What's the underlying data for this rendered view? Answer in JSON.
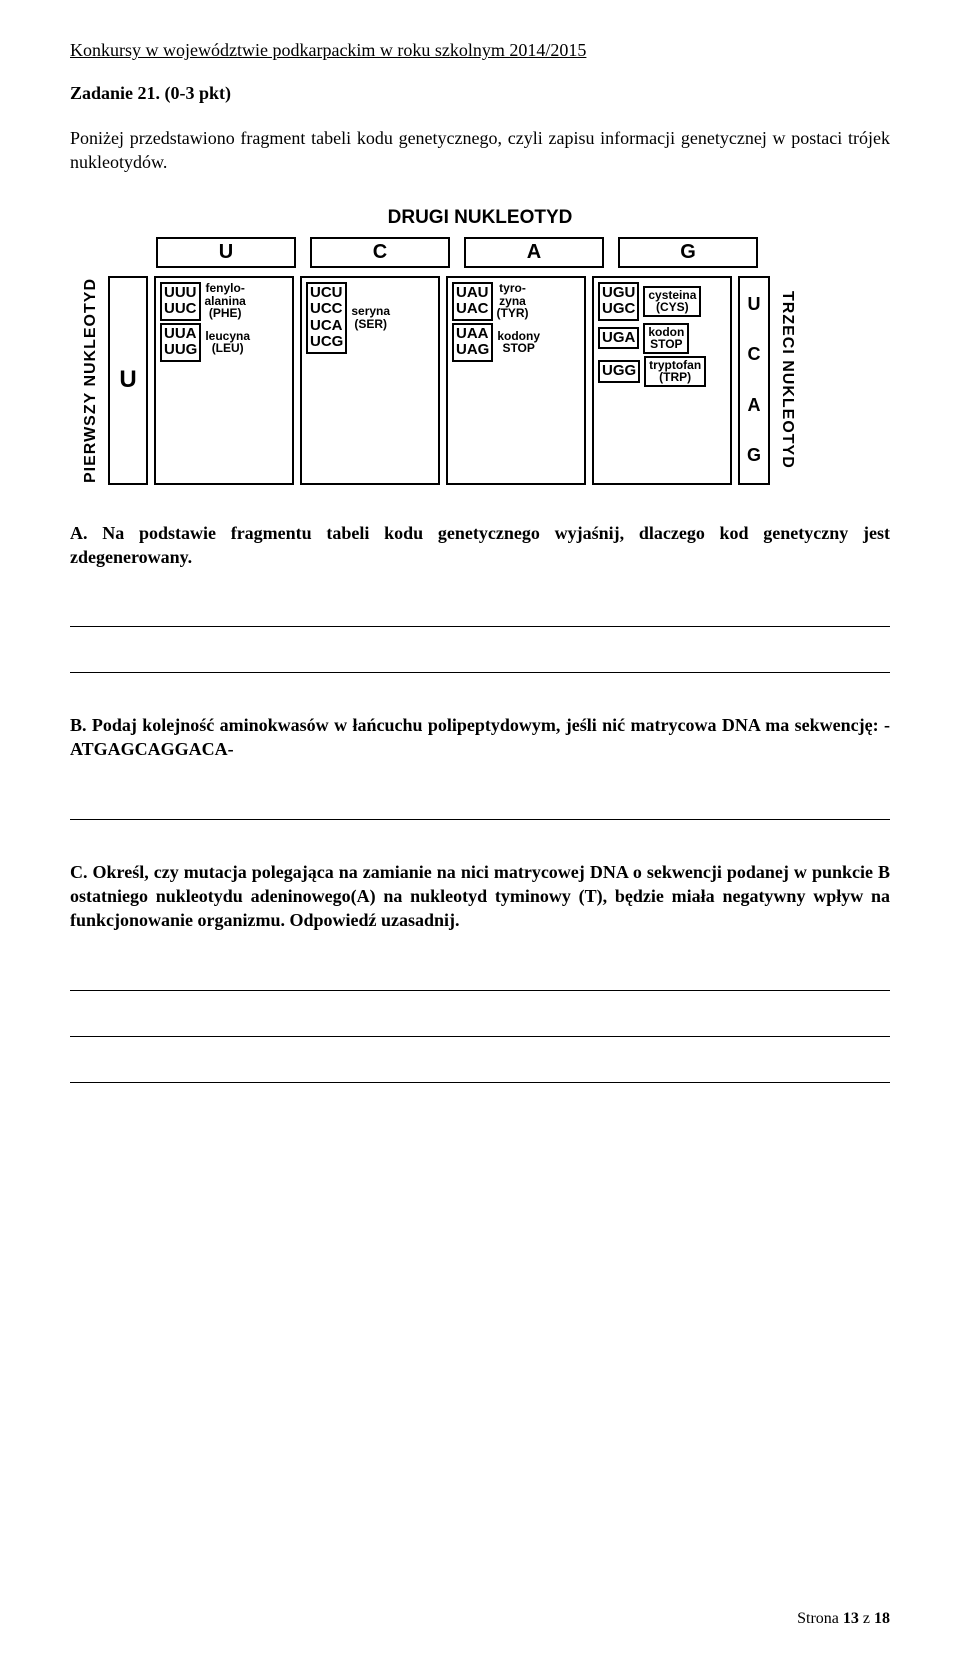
{
  "header": "Konkursy w województwie podkarpackim w roku szkolnym 2014/2015",
  "task_title": "Zadanie 21. (0-3 pkt)",
  "intro": "Poniżej przedstawiono fragment tabeli kodu genetycznego, czyli zapisu informacji genetycznej w postaci trójek nukleotydów.",
  "figure": {
    "title": "DRUGI NUKLEOTYD",
    "left_label": "PIERWSZY NUKLEOTYD",
    "right_label": "TRZECI NUKLEOTYD",
    "first_nucleotide": "U",
    "col_heads": [
      "U",
      "C",
      "A",
      "G"
    ],
    "third_nucleotides": [
      "U",
      "C",
      "A",
      "G"
    ],
    "groups": [
      {
        "blocks": [
          {
            "codons": [
              "UUU",
              "UUC"
            ],
            "aa": "fenylo-\nalanina\n(PHE)"
          },
          {
            "codons": [
              "UUA",
              "UUG"
            ],
            "aa": "leucyna\n(LEU)"
          }
        ]
      },
      {
        "blocks": [
          {
            "codons": [
              "UCU",
              "UCC",
              "UCA",
              "UCG"
            ],
            "aa": "seryna\n(SER)"
          }
        ]
      },
      {
        "blocks": [
          {
            "codons": [
              "UAU",
              "UAC"
            ],
            "aa": "tyro-\nzyna\n(TYR)"
          },
          {
            "codons": [
              "UAA",
              "UAG"
            ],
            "aa": "kodony\nSTOP"
          }
        ]
      },
      {
        "blocks": [
          {
            "codons": [
              "UGU",
              "UGC"
            ],
            "aa": "cysteina\n(CYS)"
          },
          {
            "codons": [
              "UGA"
            ],
            "aa": "kodon\nSTOP"
          },
          {
            "codons": [
              "UGG"
            ],
            "aa": "tryptofan\n(TRP)"
          }
        ]
      }
    ]
  },
  "question_a": "A. Na podstawie fragmentu tabeli kodu genetycznego wyjaśnij, dlaczego kod genetyczny jest zdegenerowany.",
  "question_b": "B. Podaj kolejność aminokwasów w łańcuchu polipeptydowym, jeśli nić matrycowa DNA ma sekwencję: - ATGAGCAGGACA-",
  "question_c": "C. Określ, czy mutacja polegająca na zamianie na nici matrycowej DNA o sekwencji podanej w punkcie B ostatniego nukleotydu adeninowego(A) na nukleotyd tyminowy (T), będzie miała negatywny wpływ na funkcjonowanie organizmu. Odpowiedź uzasadnij.",
  "footer_prefix": "Strona ",
  "footer_page": "13",
  "footer_mid": " z ",
  "footer_total": "18"
}
